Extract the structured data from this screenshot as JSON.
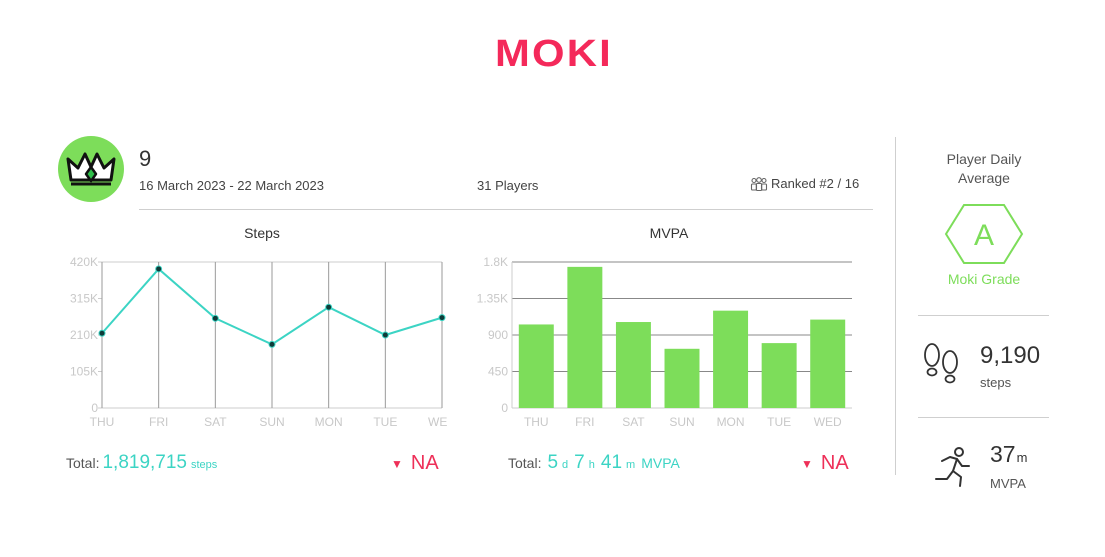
{
  "brand": {
    "logo_text": "MOKI",
    "accent": "#f4295a",
    "teal": "#3cd4c4",
    "green": "#7ddd5a"
  },
  "badge": {
    "icon": "crown-icon"
  },
  "header": {
    "team_name": "9",
    "date_range": "16 March 2023 - 22 March 2023",
    "players": "31 Players",
    "rank": "Ranked #2 / 16"
  },
  "steps_panel": {
    "total_label": "Total:",
    "total_value": "1,819,715",
    "total_unit": "steps",
    "change": "NA"
  },
  "mvpa_panel": {
    "total_label": "Total:",
    "days": "5",
    "days_unit": "d",
    "hours": "7",
    "hours_unit": "h",
    "minutes": "41",
    "minutes_unit": "m",
    "suffix": "MVPA",
    "change": "NA"
  },
  "sidebar": {
    "avg_label_line1": "Player Daily",
    "avg_label_line2": "Average",
    "grade": "A",
    "grade_caption": "Moki Grade",
    "steps_value": "9,190",
    "steps_unit": "steps",
    "mvpa_value": "37",
    "mvpa_value_unit": "m",
    "mvpa_unit": "MVPA"
  },
  "chart_data": [
    {
      "type": "line",
      "title": "Steps",
      "categories": [
        "THU",
        "FRI",
        "SAT",
        "SUN",
        "MON",
        "TUE",
        "WED"
      ],
      "values": [
        215000,
        400000,
        258000,
        183000,
        290000,
        210000,
        260000
      ],
      "ylim": [
        0,
        420000
      ],
      "yticks": [
        0,
        105000,
        210000,
        315000,
        420000
      ],
      "ytick_labels": [
        "0",
        "105K",
        "210K",
        "315K",
        "420K"
      ],
      "color": "#3cd4c4",
      "grid": "vertical"
    },
    {
      "type": "bar",
      "title": "MVPA",
      "categories": [
        "THU",
        "FRI",
        "SAT",
        "SUN",
        "MON",
        "TUE",
        "WED"
      ],
      "values": [
        1030,
        1740,
        1060,
        730,
        1200,
        800,
        1090
      ],
      "ylim": [
        0,
        1800
      ],
      "yticks": [
        0,
        450,
        900,
        1350,
        1800
      ],
      "ytick_labels": [
        "0",
        "450",
        "900",
        "1.35K",
        "1.8K"
      ],
      "color": "#7ddd5a",
      "grid": "horizontal"
    }
  ]
}
